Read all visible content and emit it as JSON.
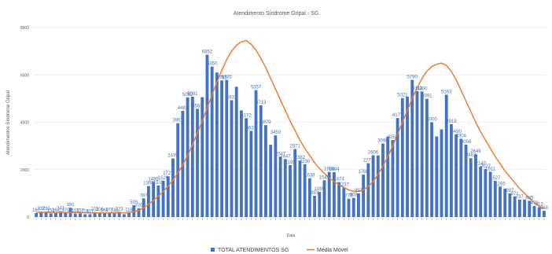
{
  "chart_data": {
    "type": "bar",
    "title": "Atendimento Síndrome Gripal - SG",
    "xlabel": "Data",
    "ylabel": "Atendimentos Síndrome Gripal",
    "ylim": [
      0,
      8000
    ],
    "yticks": [
      0,
      2000,
      4000,
      6000,
      8000
    ],
    "grid": true,
    "legend_position": "bottom",
    "colors": {
      "bars": "#4472c4",
      "line": "#ed7d31"
    },
    "series": [
      {
        "name": "TOTAL ATENDIMENTOS SG",
        "type": "bar",
        "values": [
          167,
          232,
          230,
          151,
          162,
          241,
          170,
          391,
          151,
          157,
          118,
          117,
          211,
          206,
          160,
          177,
          148,
          223,
          118,
          180,
          505,
          370,
          787,
          1306,
          1485,
          1333,
          1526,
          1721,
          2470,
          3961,
          4481,
          5052,
          5081,
          4567,
          5061,
          6852,
          6350,
          6100,
          5765,
          5785,
          4931,
          5500,
          4500,
          4172,
          3637,
          5357,
          4713,
          3879,
          3050,
          3450,
          2547,
          2447,
          2195,
          2871,
          2382,
          2230,
          1638,
          893,
          1059,
          1549,
          1904,
          1894,
          1474,
          1237,
          773,
          808,
          997,
          1788,
          2271,
          2606,
          2600,
          3098,
          3400,
          3250,
          4177,
          5021,
          5080,
          5790,
          5313,
          5300,
          4991,
          4000,
          3400,
          3700,
          5163,
          3919,
          3490,
          3304,
          3056,
          2482,
          2649,
          2140,
          2027,
          1911,
          1527,
          1285,
          1200,
          997,
          871,
          737,
          737,
          685,
          470,
          413,
          268
        ]
      },
      {
        "name": "Média Móvel",
        "type": "line",
        "values": [
          190,
          195,
          195,
          195,
          190,
          188,
          190,
          200,
          195,
          190,
          180,
          175,
          175,
          175,
          170,
          175,
          175,
          180,
          180,
          190,
          230,
          280,
          390,
          540,
          700,
          880,
          1080,
          1300,
          1560,
          1860,
          2200,
          2600,
          3050,
          3550,
          4050,
          4600,
          5150,
          5700,
          6200,
          6650,
          7000,
          7250,
          7400,
          7450,
          7300,
          7050,
          6700,
          6300,
          5850,
          5400,
          4950,
          4500,
          4050,
          3650,
          3250,
          2900,
          2600,
          2300,
          2050,
          1850,
          1650,
          1500,
          1350,
          1250,
          1150,
          1080,
          1080,
          1150,
          1300,
          1500,
          1800,
          2150,
          2550,
          3000,
          3500,
          4000,
          4500,
          5000,
          5450,
          5850,
          6150,
          6350,
          6450,
          6500,
          6400,
          6150,
          5800,
          5350,
          4900,
          4450,
          4000,
          3600,
          3250,
          2900,
          2550,
          2250,
          1950,
          1700,
          1450,
          1200,
          1000,
          800,
          600,
          450,
          350
        ]
      }
    ],
    "data_labels": [
      {
        "i": 0,
        "text": "167"
      },
      {
        "i": 1,
        "text": "232"
      },
      {
        "i": 2,
        "text": "230"
      },
      {
        "i": 3,
        "text": "151"
      },
      {
        "i": 4,
        "text": "162"
      },
      {
        "i": 5,
        "text": "241"
      },
      {
        "i": 6,
        "text": "170"
      },
      {
        "i": 7,
        "text": "391"
      },
      {
        "i": 8,
        "text": "151"
      },
      {
        "i": 9,
        "text": "157"
      },
      {
        "i": 10,
        "text": "118"
      },
      {
        "i": 11,
        "text": "117"
      },
      {
        "i": 12,
        "text": "211"
      },
      {
        "i": 13,
        "text": "206"
      },
      {
        "i": 14,
        "text": "160"
      },
      {
        "i": 15,
        "text": "177"
      },
      {
        "i": 16,
        "text": "148"
      },
      {
        "i": 17,
        "text": "223"
      },
      {
        "i": 19,
        "text": "118"
      },
      {
        "i": 20,
        "text": "505"
      },
      {
        "i": 21,
        "text": "370"
      },
      {
        "i": 22,
        "text": "787"
      },
      {
        "i": 23,
        "text": "1306"
      },
      {
        "i": 24,
        "text": "1485"
      },
      {
        "i": 25,
        "text": "1333"
      },
      {
        "i": 26,
        "text": "1526"
      },
      {
        "i": 27,
        "text": "1721"
      },
      {
        "i": 28,
        "text": "2470"
      },
      {
        "i": 29,
        "text": "3961"
      },
      {
        "i": 30,
        "text": "4481"
      },
      {
        "i": 31,
        "text": "5052"
      },
      {
        "i": 32,
        "text": "5081"
      },
      {
        "i": 33,
        "text": "4567"
      },
      {
        "i": 35,
        "text": "6852"
      },
      {
        "i": 36,
        "text": "6350"
      },
      {
        "i": 38,
        "text": "5765"
      },
      {
        "i": 39,
        "text": "5785"
      },
      {
        "i": 40,
        "text": "4931"
      },
      {
        "i": 43,
        "text": "4172"
      },
      {
        "i": 44,
        "text": "3637"
      },
      {
        "i": 45,
        "text": "5357"
      },
      {
        "i": 46,
        "text": "4713"
      },
      {
        "i": 47,
        "text": "3879"
      },
      {
        "i": 49,
        "text": "3450"
      },
      {
        "i": 50,
        "text": "2547"
      },
      {
        "i": 51,
        "text": "2447"
      },
      {
        "i": 52,
        "text": "2195"
      },
      {
        "i": 53,
        "text": "2871"
      },
      {
        "i": 54,
        "text": "2382"
      },
      {
        "i": 55,
        "text": "2230"
      },
      {
        "i": 56,
        "text": "1638"
      },
      {
        "i": 57,
        "text": "893"
      },
      {
        "i": 58,
        "text": "1059"
      },
      {
        "i": 59,
        "text": "1549"
      },
      {
        "i": 60,
        "text": "1904"
      },
      {
        "i": 61,
        "text": "1894"
      },
      {
        "i": 62,
        "text": "1474"
      },
      {
        "i": 63,
        "text": "1237"
      },
      {
        "i": 64,
        "text": "773"
      },
      {
        "i": 65,
        "text": "808"
      },
      {
        "i": 66,
        "text": "997"
      },
      {
        "i": 67,
        "text": "1788"
      },
      {
        "i": 68,
        "text": "2271"
      },
      {
        "i": 69,
        "text": "2606"
      },
      {
        "i": 71,
        "text": "3098"
      },
      {
        "i": 73,
        "text": "3250"
      },
      {
        "i": 74,
        "text": "4177"
      },
      {
        "i": 75,
        "text": "5021"
      },
      {
        "i": 77,
        "text": "5790"
      },
      {
        "i": 78,
        "text": "5313"
      },
      {
        "i": 79,
        "text": "5300"
      },
      {
        "i": 80,
        "text": "4991"
      },
      {
        "i": 81,
        "text": "4000"
      },
      {
        "i": 84,
        "text": "5163"
      },
      {
        "i": 85,
        "text": "3919"
      },
      {
        "i": 86,
        "text": "3490"
      },
      {
        "i": 87,
        "text": "3304"
      },
      {
        "i": 88,
        "text": "3056"
      },
      {
        "i": 89,
        "text": "2482"
      },
      {
        "i": 90,
        "text": "2649"
      },
      {
        "i": 91,
        "text": "2140"
      },
      {
        "i": 92,
        "text": "2027"
      },
      {
        "i": 93,
        "text": "1911"
      },
      {
        "i": 94,
        "text": "1527"
      },
      {
        "i": 95,
        "text": "1285"
      },
      {
        "i": 97,
        "text": "997"
      },
      {
        "i": 98,
        "text": "871"
      },
      {
        "i": 99,
        "text": "737"
      },
      {
        "i": 101,
        "text": "685"
      },
      {
        "i": 102,
        "text": "470"
      },
      {
        "i": 103,
        "text": "413"
      },
      {
        "i": 104,
        "text": "268"
      }
    ]
  },
  "legend": {
    "bar_label": "TOTAL ATENDIMENTOS SG",
    "line_label": "Média Móvel"
  }
}
